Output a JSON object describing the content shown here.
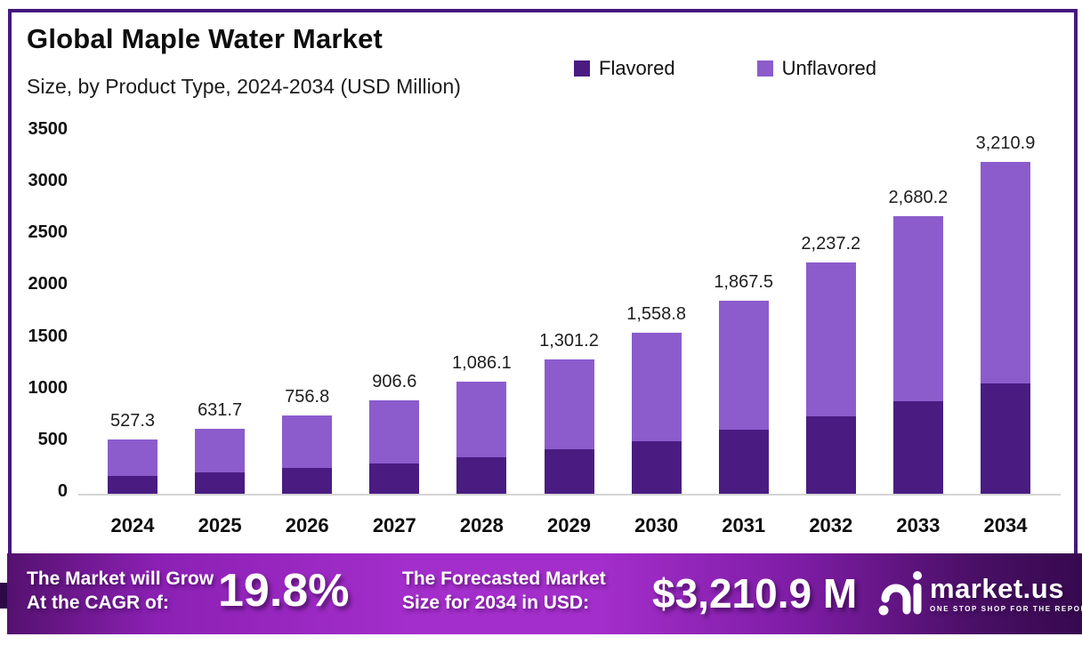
{
  "header": {
    "title": "Global Maple Water Market",
    "subtitle": "Size, by Product Type, 2024-2034 (USD Million)"
  },
  "legend": {
    "items": [
      {
        "label": "Flavored",
        "color": "#4a1c82"
      },
      {
        "label": "Unflavored",
        "color": "#8c5ccc"
      }
    ]
  },
  "chart_data": {
    "type": "bar",
    "stacked": true,
    "title": "Global Maple Water Market Size, by Product Type, 2024-2034 (USD Million)",
    "categories": [
      "2024",
      "2025",
      "2026",
      "2027",
      "2028",
      "2029",
      "2030",
      "2031",
      "2032",
      "2033",
      "2034"
    ],
    "series": [
      {
        "name": "Flavored",
        "color": "#4a1c82",
        "values": [
          171.0,
          206.0,
          246.0,
          296.0,
          356.0,
          426.0,
          510.0,
          616.0,
          746.0,
          891.0,
          1066.0
        ],
        "note": "estimated from bar segment heights; only totals are labeled"
      },
      {
        "name": "Unflavored",
        "color": "#8c5ccc",
        "values": [
          356.3,
          425.7,
          510.8,
          610.6,
          730.1,
          875.2,
          1048.8,
          1251.5,
          1491.2,
          1789.2,
          2144.9
        ],
        "note": "estimated from bar segment heights; only totals are labeled"
      }
    ],
    "totals": [
      527.3,
      631.7,
      756.8,
      906.6,
      1086.1,
      1301.2,
      1558.8,
      1867.5,
      2237.2,
      2680.2,
      3210.9
    ],
    "total_labels": [
      "527.3",
      "631.7",
      "756.8",
      "906.6",
      "1,086.1",
      "1,301.2",
      "1,558.8",
      "1,867.5",
      "2,237.2",
      "2,680.2",
      "3,210.9"
    ],
    "xlabel": "",
    "ylabel": "",
    "ylim": [
      0,
      3500
    ],
    "yticks": [
      "3500",
      "3000",
      "2500",
      "2000",
      "1500",
      "1000",
      "500",
      "0"
    ],
    "grid": false,
    "legend_position": "top-right"
  },
  "footer": {
    "cagr_line1": "The Market will Grow",
    "cagr_line2": "At the CAGR of:",
    "cagr_value": "19.8%",
    "forecast_line1": "The Forecasted Market",
    "forecast_line2": "Size for 2034 in USD:",
    "forecast_value": "$3,210.9 M",
    "brand_name": "market.us",
    "brand_tagline": "ONE STOP SHOP FOR THE REPORTS"
  },
  "colors": {
    "flavored": "#4a1c82",
    "unflavored": "#8c5ccc",
    "frame_border": "#451880",
    "ribbon_bright": "#a42ecb",
    "ribbon_dark_left": "#54116e",
    "ribbon_dark_right": "#37094f",
    "axis_line": "#d4d4d4"
  }
}
